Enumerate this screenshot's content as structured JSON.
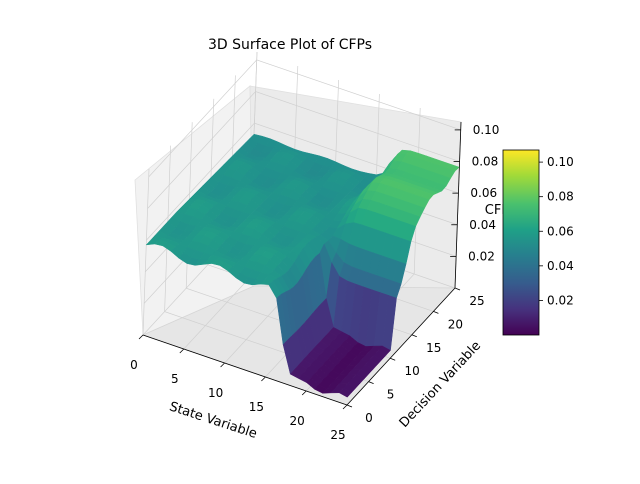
{
  "chart_data": {
    "type": "surface3d",
    "title": "3D Surface Plot of CFPs",
    "xlabel": "State Variable",
    "ylabel": "Decision Variable",
    "zlabel": "CFP",
    "xlim": [
      0,
      25
    ],
    "ylim": [
      0,
      25
    ],
    "zlim": [
      0.0,
      0.105
    ],
    "x_ticks": [
      "0",
      "5",
      "10",
      "15",
      "20",
      "25"
    ],
    "y_ticks": [
      "0",
      "5",
      "10",
      "15",
      "20",
      "25"
    ],
    "z_ticks": [
      "0.02",
      "0.04",
      "0.06",
      "0.08",
      "0.10"
    ],
    "surface": {
      "x": [
        0,
        25
      ],
      "y": [
        0,
        25
      ],
      "z_description": "approximate reconstruction from image",
      "regions": [
        {
          "x_range": [
            0,
            17
          ],
          "y_range": [
            0,
            10
          ],
          "z": 0.058,
          "note": "broad plateau"
        },
        {
          "x_range": [
            17,
            25
          ],
          "y_range": [
            0,
            10
          ],
          "z": 0.005,
          "note": "low valley"
        },
        {
          "x_range": [
            17,
            25
          ],
          "y_range": [
            10,
            18
          ],
          "z": [
            0.035,
            0.075
          ],
          "note": "wall face (rising)"
        },
        {
          "x_range": [
            17,
            25
          ],
          "y_range": [
            18,
            25
          ],
          "z": [
            0.065,
            0.075
          ],
          "note": "top ridge"
        }
      ]
    },
    "colorbar": {
      "colormap": "viridis",
      "min": 0.0,
      "max": 0.107,
      "ticks": [
        "0.02",
        "0.04",
        "0.06",
        "0.08",
        "0.10"
      ]
    }
  }
}
